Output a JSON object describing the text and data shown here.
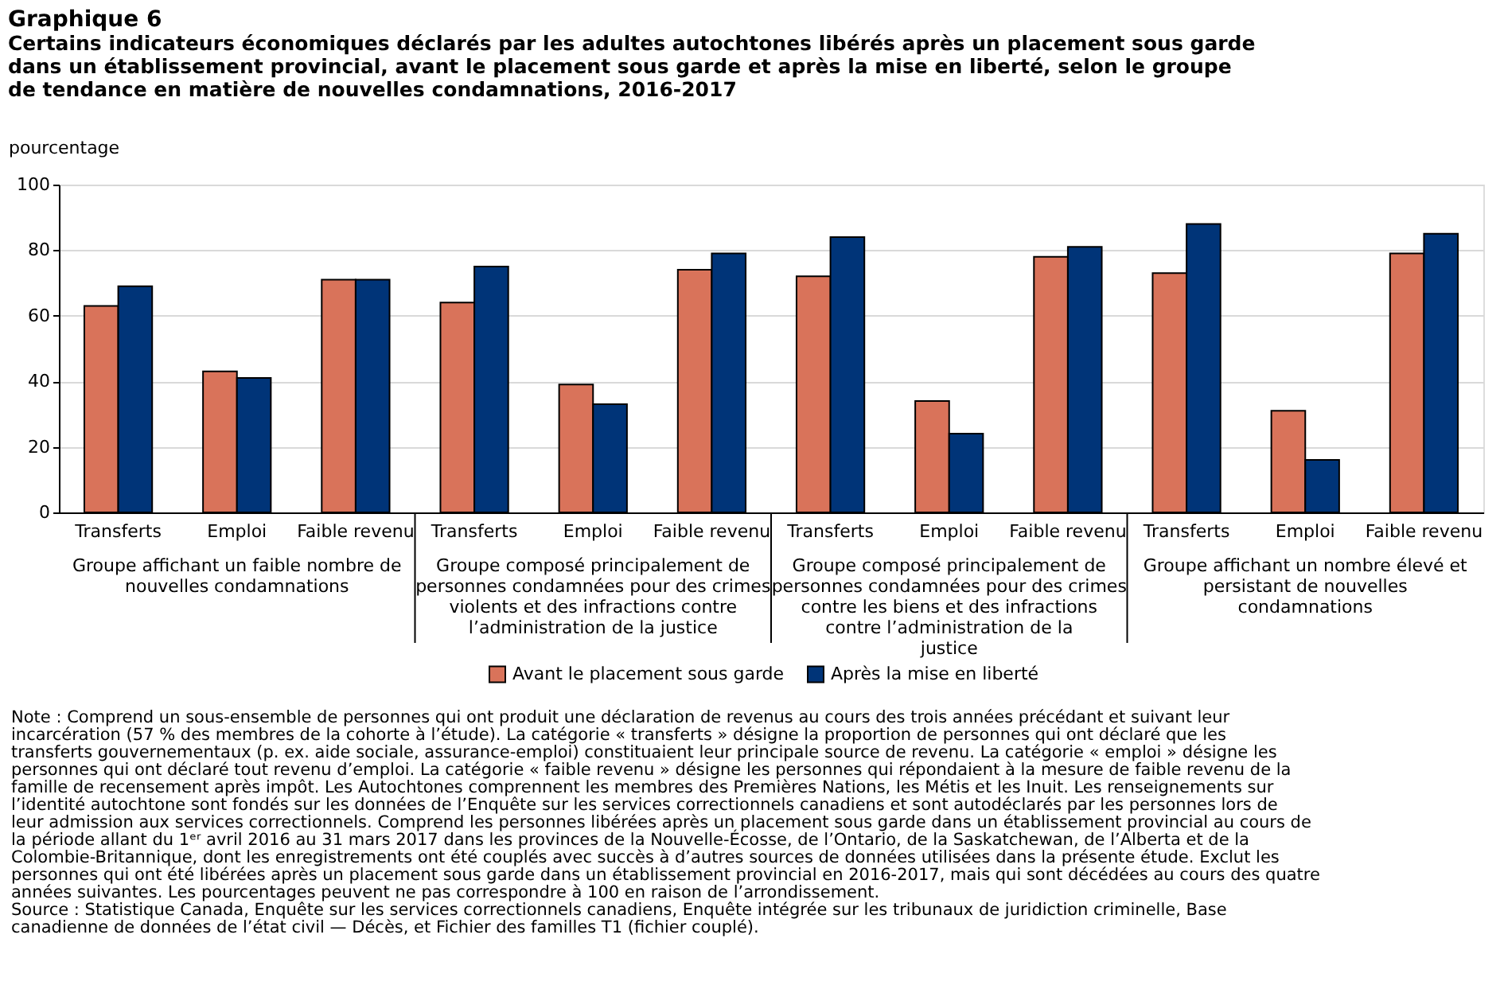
{
  "chart_data": {
    "type": "bar",
    "title": "Graphique 6",
    "subtitle": "Certains indicateurs économiques déclarés par les adultes autochtones libérés après un placement sous garde dans un établissement provincial, avant le placement sous garde et après la mise en liberté, selon le groupe de tendance en matière de nouvelles condamnations, 2016-2017",
    "ylabel": "pourcentage",
    "categories": [
      "Transferts",
      "Emploi",
      "Faible revenu",
      "Transferts",
      "Emploi",
      "Faible revenu",
      "Transferts",
      "Emploi",
      "Faible revenu",
      "Transferts",
      "Emploi",
      "Faible revenu"
    ],
    "series": [
      {
        "name": "Avant le placement sous garde",
        "color": "#d9735a",
        "values": [
          63,
          43,
          71,
          64,
          39,
          74,
          72,
          34,
          78,
          73,
          31,
          79
        ]
      },
      {
        "name": "Après la mise en liberté",
        "color": "#003478",
        "values": [
          69,
          41,
          71,
          75,
          33,
          79,
          84,
          24,
          81,
          88,
          16,
          85
        ]
      }
    ],
    "ylim": [
      0,
      100
    ],
    "yticks": [
      0,
      20,
      40,
      60,
      80,
      100
    ],
    "grid": "y",
    "legend": "bottom",
    "annotations": [
      "Groupe affichant un faible nombre de nouvelles condamnations",
      "Groupe composé principalement de personnes condamnées pour des crimes violents et des infractions contre l’administration de la justice",
      "Groupe composé principalement de personnes condamnées pour des crimes contre les biens et des infractions contre l’administration de la justice",
      "Groupe affichant un nombre élevé et persistant de nouvelles condamnations",
      "Note : Comprend un sous-ensemble de personnes qui ont produit une déclaration de revenus au cours des trois années précédant et suivant leur incarcération (57 % des membres de la cohorte à l’étude). La catégorie « transferts » désigne la proportion de personnes qui ont déclaré que les transferts gouvernementaux (p. ex. aide sociale, assurance-emploi) constituaient leur principale source de revenu. La catégorie « emploi » désigne les personnes qui ont déclaré tout revenu d’emploi. La catégorie « faible revenu » désigne les personnes qui répondaient à la mesure de faible revenu de la famille de recensement après impôt. Les Autochtones comprennent les membres des Premières Nations, les Métis et les Inuit. Les renseignements sur l’identité autochtone sont fondés sur les données de l’Enquête sur les services correctionnels canadiens et sont autodéclarés par les personnes lors de leur admission aux services correctionnels. Comprend les personnes libérées après un placement sous garde dans un établissement provincial au cours de la période allant du 1ᵉʳ avril 2016 au 31 mars 2017 dans les provinces de la Nouvelle-Écosse, de l’Ontario, de la Saskatchewan, de l’Alberta et de la Colombie-Britannique, dont les enregistrements ont été couplés avec succès à d’autres sources de données utilisées dans la présente étude. Exclut les personnes qui ont été libérées après un placement sous garde dans un établissement provincial en 2016-2017, mais qui sont décédées au cours des quatre années suivantes. Les pourcentages peuvent ne pas correspondre à 100 en raison de l’arrondissement.",
      "Source : Statistique Canada, Enquête sur les services correctionnels canadiens, Enquête intégrée sur les tribunaux de juridiction criminelle, Base canadienne de données de l’état civil — Décès, et Fichier des familles T1 (fichier couplé)."
    ]
  }
}
